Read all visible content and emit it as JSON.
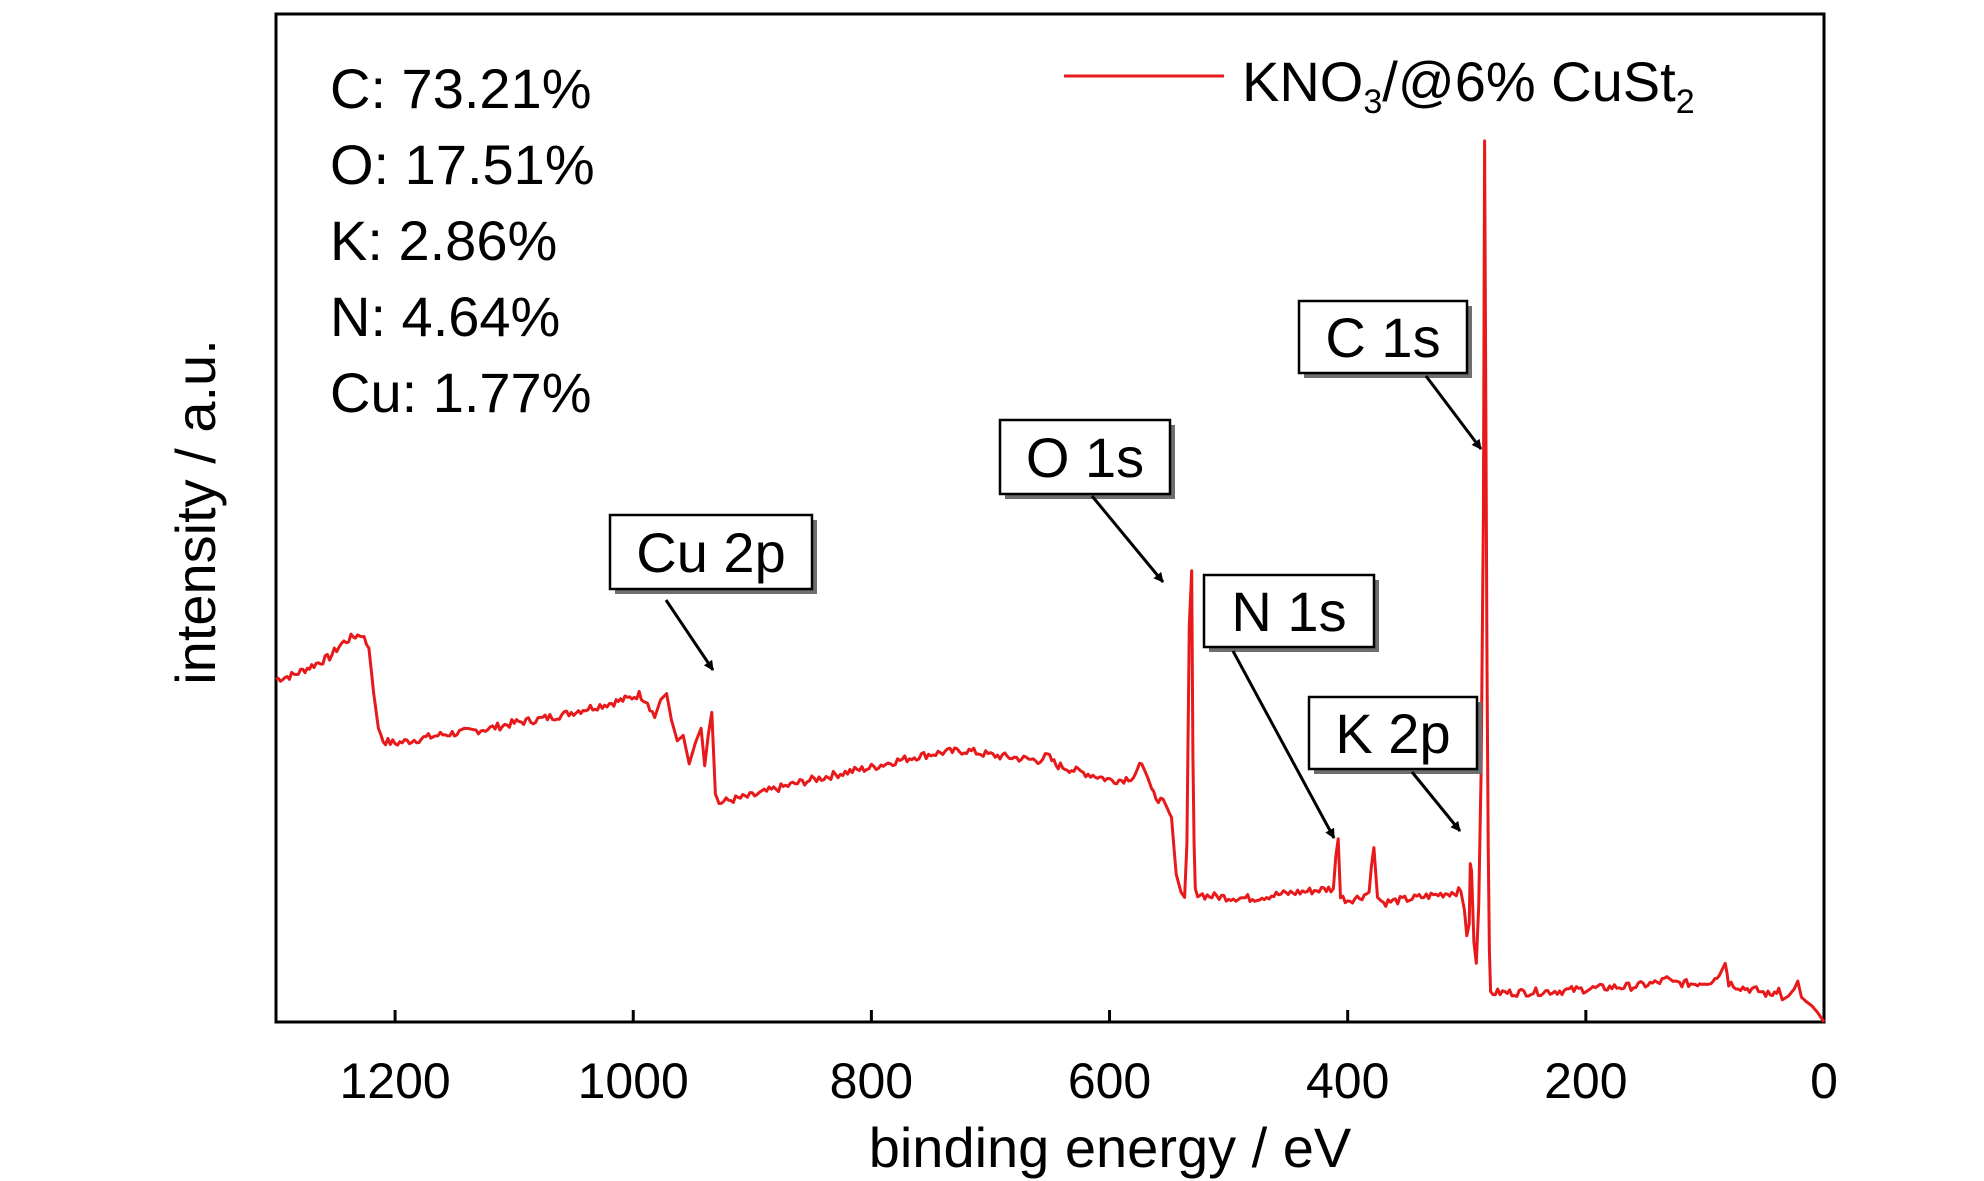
{
  "chart_data": {
    "type": "line",
    "title": "",
    "xlabel": "binding energy / eV",
    "ylabel": "intensity / a.u.",
    "xlim": [
      1300,
      0
    ],
    "x_reversed": true,
    "ylim": [
      0,
      100
    ],
    "y_ticks_shown": false,
    "x_ticks": [
      1200,
      1000,
      800,
      600,
      400,
      200,
      0
    ],
    "x_tick_labels": [
      "1200",
      "1000",
      "800",
      "600",
      "400",
      "200",
      "0"
    ],
    "grid": false,
    "legend": {
      "placement": "top-right",
      "parts": [
        "KNO",
        "3",
        "/@6% CuSt",
        "2"
      ]
    },
    "composition": [
      {
        "element": "C",
        "text": "C: 73.21%"
      },
      {
        "element": "O",
        "text": "O: 17.51%"
      },
      {
        "element": "K",
        "text": "K: 2.86%"
      },
      {
        "element": "N",
        "text": "N: 4.64%"
      },
      {
        "element": "Cu",
        "text": "Cu: 1.77%"
      }
    ],
    "annotations": [
      {
        "label": "Cu 2p",
        "x": 935,
        "y": 34
      },
      {
        "label": "O 1s",
        "x": 531,
        "y": 42
      },
      {
        "label": "N 1s",
        "x": 405,
        "y": 18
      },
      {
        "label": "K 2p",
        "x": 296,
        "y": 19
      },
      {
        "label": "C 1s",
        "x": 285,
        "y": 56
      }
    ],
    "series": [
      {
        "name": "KNO3/@6% CuSt2",
        "color": "#e8191a",
        "points": [
          [
            1300,
            38.5
          ],
          [
            1285,
            39.0
          ],
          [
            1270,
            40.0
          ],
          [
            1255,
            41.0
          ],
          [
            1245,
            42.5
          ],
          [
            1235,
            43.3
          ],
          [
            1228,
            43.6
          ],
          [
            1222,
            42.0
          ],
          [
            1218,
            37.0
          ],
          [
            1214,
            33.0
          ],
          [
            1210,
            31.6
          ],
          [
            1200,
            31.3
          ],
          [
            1180,
            31.8
          ],
          [
            1160,
            32.3
          ],
          [
            1140,
            32.6
          ],
          [
            1120,
            33.0
          ],
          [
            1100,
            33.6
          ],
          [
            1080,
            34.0
          ],
          [
            1060,
            34.5
          ],
          [
            1040,
            35.2
          ],
          [
            1020,
            35.8
          ],
          [
            1005,
            36.3
          ],
          [
            995,
            36.8
          ],
          [
            988,
            36.0
          ],
          [
            982,
            34.2
          ],
          [
            977,
            36.2
          ],
          [
            972,
            36.9
          ],
          [
            968,
            34.0
          ],
          [
            963,
            31.6
          ],
          [
            958,
            32.2
          ],
          [
            953,
            29.0
          ],
          [
            948,
            31.3
          ],
          [
            943,
            33.0
          ],
          [
            940,
            28.8
          ],
          [
            937,
            32.2
          ],
          [
            934,
            34.8
          ],
          [
            931,
            25.6
          ],
          [
            928,
            24.6
          ],
          [
            920,
            24.9
          ],
          [
            900,
            25.4
          ],
          [
            880,
            26.2
          ],
          [
            860,
            26.9
          ],
          [
            840,
            27.5
          ],
          [
            820,
            28.1
          ],
          [
            800,
            28.6
          ],
          [
            780,
            29.3
          ],
          [
            760,
            29.9
          ],
          [
            740,
            30.3
          ],
          [
            720,
            30.5
          ],
          [
            700,
            30.0
          ],
          [
            680,
            29.7
          ],
          [
            660,
            29.4
          ],
          [
            652,
            29.9
          ],
          [
            645,
            28.9
          ],
          [
            630,
            28.3
          ],
          [
            610,
            27.6
          ],
          [
            600,
            27.2
          ],
          [
            590,
            27.2
          ],
          [
            580,
            27.6
          ],
          [
            573,
            29.0
          ],
          [
            568,
            27.5
          ],
          [
            563,
            25.6
          ],
          [
            555,
            24.6
          ],
          [
            548,
            23.0
          ],
          [
            544,
            16.6
          ],
          [
            540,
            14.6
          ],
          [
            537,
            14.0
          ],
          [
            535,
            20.0
          ],
          [
            533,
            44.5
          ],
          [
            531,
            50.7
          ],
          [
            530,
            30.0
          ],
          [
            529,
            20.0
          ],
          [
            528,
            14.6
          ],
          [
            520,
            14.2
          ],
          [
            500,
            14.0
          ],
          [
            480,
            13.9
          ],
          [
            460,
            14.3
          ],
          [
            440,
            14.6
          ],
          [
            420,
            14.9
          ],
          [
            412,
            15.0
          ],
          [
            410,
            18.6
          ],
          [
            408,
            20.6
          ],
          [
            406,
            14.0
          ],
          [
            400,
            13.7
          ],
          [
            390,
            14.0
          ],
          [
            382,
            14.6
          ],
          [
            380,
            17.6
          ],
          [
            378,
            19.6
          ],
          [
            375,
            14.0
          ],
          [
            370,
            13.4
          ],
          [
            360,
            13.6
          ],
          [
            340,
            14.0
          ],
          [
            320,
            14.4
          ],
          [
            305,
            14.7
          ],
          [
            302,
            12.6
          ],
          [
            300,
            9.7
          ],
          [
            298,
            11.0
          ],
          [
            297,
            17.8
          ],
          [
            296,
            17.0
          ],
          [
            294,
            9.0
          ],
          [
            292,
            6.6
          ],
          [
            290,
            13.0
          ],
          [
            288,
            28.0
          ],
          [
            286,
            57.0
          ],
          [
            285,
            99.0
          ],
          [
            284,
            70.0
          ],
          [
            283,
            40.0
          ],
          [
            282,
            20.0
          ],
          [
            281,
            8.0
          ],
          [
            280,
            3.3
          ],
          [
            260,
            3.3
          ],
          [
            240,
            3.4
          ],
          [
            220,
            3.5
          ],
          [
            200,
            3.7
          ],
          [
            180,
            3.9
          ],
          [
            160,
            4.0
          ],
          [
            140,
            4.4
          ],
          [
            130,
            4.9
          ],
          [
            125,
            4.4
          ],
          [
            110,
            4.3
          ],
          [
            95,
            4.6
          ],
          [
            88,
            5.2
          ],
          [
            83,
            6.6
          ],
          [
            80,
            4.4
          ],
          [
            70,
            3.9
          ],
          [
            55,
            3.5
          ],
          [
            45,
            3.0
          ],
          [
            38,
            3.8
          ],
          [
            35,
            2.5
          ],
          [
            30,
            2.9
          ],
          [
            25,
            3.7
          ],
          [
            22,
            4.6
          ],
          [
            19,
            2.8
          ],
          [
            15,
            2.3
          ],
          [
            10,
            1.8
          ],
          [
            5,
            1.0
          ],
          [
            0,
            0.0
          ]
        ]
      }
    ]
  }
}
